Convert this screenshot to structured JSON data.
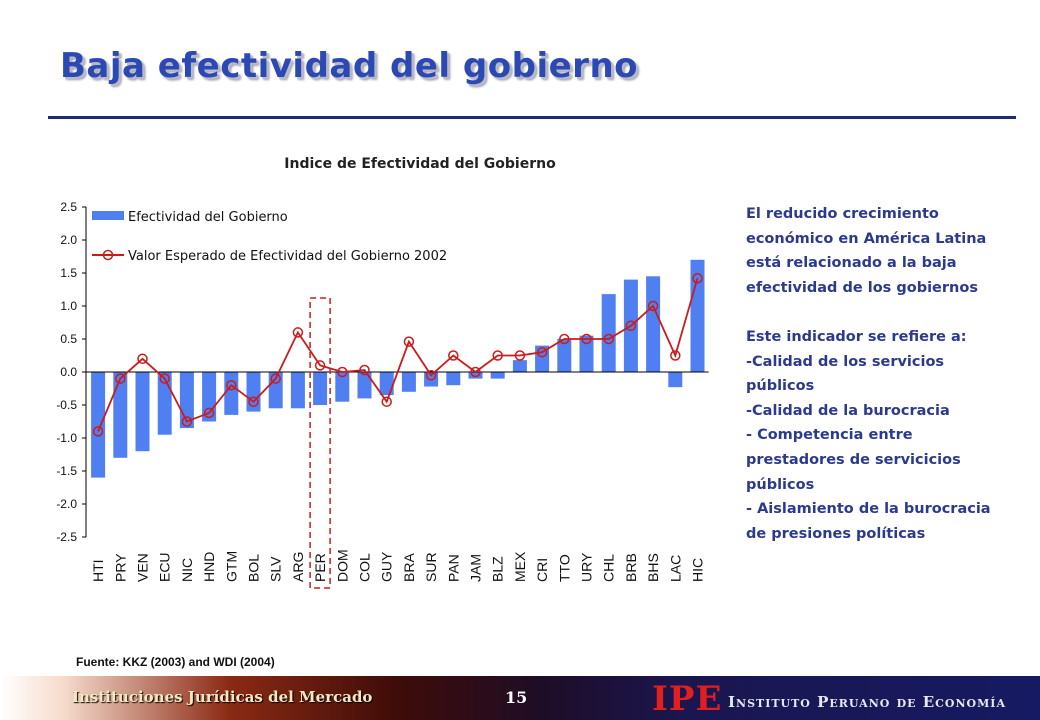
{
  "slide": {
    "title": "Baja efectividad del gobierno",
    "side_text": {
      "p1": "El reducido crecimiento económico en América Latina está relacionado a la baja efectividad de los gobiernos",
      "p2_lines": [
        "Este indicador se refiere a:",
        "-Calidad de los servicios públicos",
        "-Calidad de la burocracia",
        "- Competencia entre prestadores de servicicios públicos",
        "- Aislamiento de la burocracia de presiones políticas"
      ]
    },
    "source": "Fuente: KKZ (2003) and WDI (2004)",
    "footer": {
      "left": "Instituciones Jurídicas del Mercado",
      "page": "15",
      "logo": "IPE",
      "org": "Instituto Peruano de Economía"
    }
  },
  "colors": {
    "title": "#2b49b3",
    "bar": "#4f7ff0",
    "line": "#cc1b1b",
    "highlight": "#cc1b1b",
    "text": "#2b3a8f"
  },
  "chart_data": {
    "type": "bar",
    "title": "Indice de Efectividad del Gobierno",
    "categories": [
      "HTI",
      "PRY",
      "VEN",
      "ECU",
      "NIC",
      "HND",
      "GTM",
      "BOL",
      "SLV",
      "ARG",
      "PER",
      "DOM",
      "COL",
      "GUY",
      "BRA",
      "SUR",
      "PAN",
      "JAM",
      "BLZ",
      "MEX",
      "CRI",
      "TTO",
      "URY",
      "CHL",
      "BRB",
      "BHS",
      "LAC",
      "HIC"
    ],
    "ylim": [
      -2.5,
      2.5
    ],
    "yticks": [
      2.5,
      2.0,
      1.5,
      1.0,
      0.5,
      0.0,
      -0.5,
      -1.0,
      -1.5,
      -2.0,
      -2.5
    ],
    "ytick_labels": [
      "2.5",
      "2.0",
      "1.5",
      "1.0",
      "0.5",
      "0.0",
      "-0.5",
      "-1.0",
      "-1.5",
      "-2.0",
      "-2.5"
    ],
    "series": [
      {
        "name": "Efectividad del Gobierno",
        "type": "bar",
        "values": [
          -1.6,
          -1.3,
          -1.2,
          -0.95,
          -0.85,
          -0.75,
          -0.65,
          -0.6,
          -0.55,
          -0.55,
          -0.5,
          -0.45,
          -0.4,
          -0.35,
          -0.3,
          -0.22,
          -0.2,
          -0.1,
          -0.1,
          0.18,
          0.4,
          0.5,
          0.55,
          1.18,
          1.4,
          1.45,
          -0.23,
          1.7
        ]
      },
      {
        "name": "Valor Esperado de Efectividad del Gobierno 2002",
        "type": "line",
        "values": [
          -0.9,
          -0.1,
          0.2,
          -0.1,
          -0.75,
          -0.62,
          -0.2,
          -0.45,
          -0.1,
          0.6,
          0.1,
          0.0,
          0.03,
          -0.45,
          0.46,
          -0.05,
          0.25,
          0.0,
          0.25,
          0.25,
          0.3,
          0.5,
          0.5,
          0.5,
          0.7,
          1.0,
          0.25,
          1.42
        ]
      }
    ],
    "highlight_category": "PER",
    "grid": false,
    "legend_position": "top-left"
  }
}
